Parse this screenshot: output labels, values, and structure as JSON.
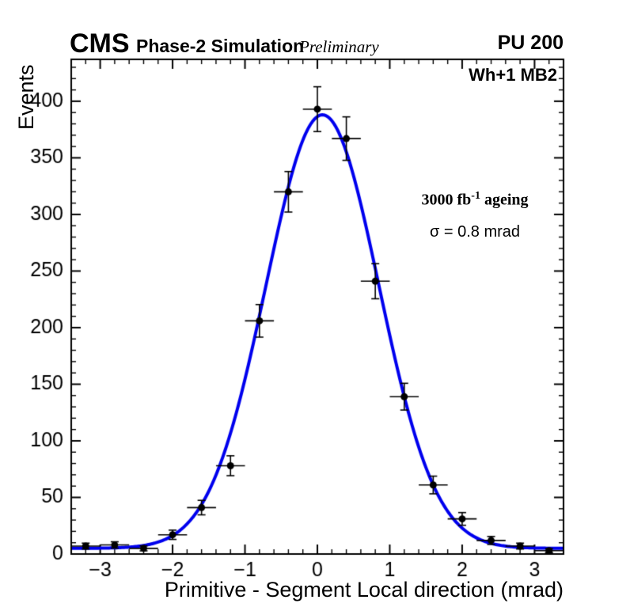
{
  "header": {
    "experiment": "CMS",
    "simulation": "Phase-2 Simulation",
    "preliminary": "Preliminary",
    "pileup": "PU 200"
  },
  "plot": {
    "corner_label": "Wh+1 MB2",
    "lumi_prefix": "3000 fb",
    "lumi_sup": "-1",
    "lumi_suffix": " ageing",
    "sigma_label": "σ = 0.8 mrad"
  },
  "chart_data": {
    "type": "scatter",
    "title": "",
    "xlabel": "Primitive - Segment Local direction (mrad)",
    "ylabel": "Events",
    "xlim": [
      -3.4,
      3.4
    ],
    "ylim": [
      0,
      437
    ],
    "grid": false,
    "legend_position": "none",
    "x_major_ticks": [
      -3,
      -2,
      -1,
      0,
      1,
      2,
      3
    ],
    "x_minor_step": 0.2,
    "y_major_ticks": [
      0,
      50,
      100,
      150,
      200,
      250,
      300,
      350,
      400
    ],
    "y_minor_step": 10,
    "points": {
      "x": [
        -3.2,
        -2.8,
        -2.4,
        -2.0,
        -1.6,
        -1.2,
        -0.8,
        -0.4,
        0.0,
        0.4,
        0.8,
        1.2,
        1.6,
        2.0,
        2.4,
        2.8,
        3.2
      ],
      "y": [
        7,
        8,
        5,
        17,
        41,
        78,
        206,
        320,
        393,
        367,
        241,
        139,
        61,
        31,
        12,
        7,
        3
      ],
      "xerr": 0.2,
      "yerr": [
        2.6,
        2.8,
        2.2,
        4.1,
        6.4,
        8.8,
        14.4,
        17.9,
        19.8,
        19.2,
        15.5,
        11.8,
        7.8,
        5.6,
        3.5,
        2.6,
        1.7
      ],
      "marker_color": "#000000",
      "marker_radius": 4.5
    },
    "fit": {
      "shape": "gaussian_plus_const",
      "amplitude": 383,
      "mean": 0.07,
      "sigma": 0.78,
      "constant": 5,
      "color": "#0000ee",
      "line_width": 4
    }
  }
}
